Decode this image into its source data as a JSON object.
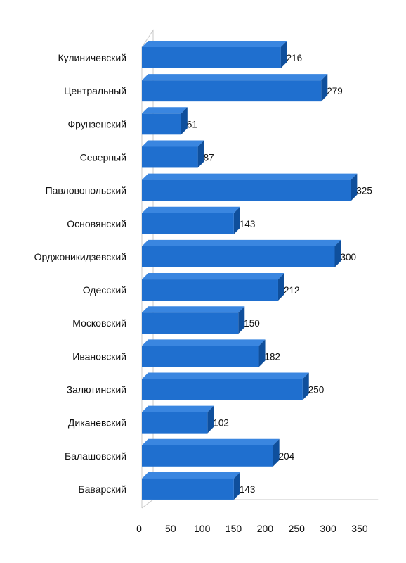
{
  "chart_data": {
    "type": "bar",
    "orientation": "horizontal",
    "style": "3d",
    "categories": [
      "Кулиничевский",
      "Центральный",
      "Фрунзенский",
      "Северный",
      "Павловопольский",
      "Основянский",
      "Орджоникидзевский",
      "Одесский",
      "Московский",
      "Ивановский",
      "Залютинский",
      "Диканевский",
      "Балашовский",
      "Баварский"
    ],
    "values": [
      216,
      279,
      61,
      87,
      325,
      143,
      300,
      212,
      150,
      182,
      250,
      102,
      204,
      143
    ],
    "xlim": [
      0,
      350
    ],
    "x_ticks": [
      "0",
      "50",
      "100",
      "150",
      "200",
      "250",
      "300",
      "350"
    ],
    "grid": false,
    "legend": "none",
    "colors": {
      "bar_front": "#1f6fcf",
      "bar_top": "#3a86e0",
      "bar_side": "#0f4f9c"
    }
  }
}
